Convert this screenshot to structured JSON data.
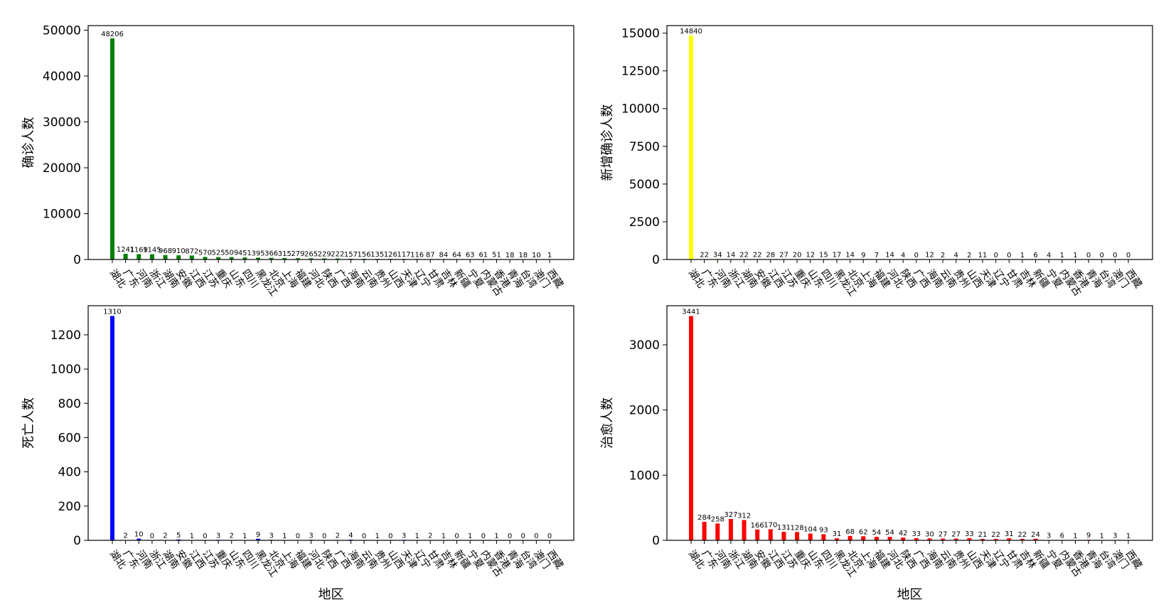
{
  "chart_data": [
    {
      "type": "bar",
      "id": "confirmed",
      "title": "",
      "xlabel": "",
      "ylabel": "确诊人数",
      "color": "#008000",
      "ylim": [
        0,
        51000
      ],
      "yticks": [
        0,
        10000,
        20000,
        30000,
        40000,
        50000
      ],
      "categories": [
        "湖北",
        "广东",
        "河南",
        "浙江",
        "湖南",
        "安徽",
        "江西",
        "江苏",
        "重庆",
        "山东",
        "四川",
        "黑龙江",
        "北京",
        "上海",
        "福建",
        "河北",
        "陕西",
        "广西",
        "海南",
        "云南",
        "贵州",
        "山西",
        "天津",
        "辽宁",
        "甘肃",
        "吉林",
        "新疆",
        "宁夏",
        "内蒙古",
        "香港",
        "青海",
        "台湾",
        "澳门",
        "西藏"
      ],
      "values": [
        48206,
        1241,
        1169,
        1145,
        968,
        910,
        872,
        570,
        525,
        509,
        451,
        395,
        366,
        315,
        279,
        265,
        229,
        222,
        157,
        156,
        135,
        126,
        117,
        116,
        87,
        84,
        64,
        63,
        61,
        51,
        18,
        18,
        10,
        1
      ]
    },
    {
      "type": "bar",
      "id": "new-confirmed",
      "title": "",
      "xlabel": "",
      "ylabel": "新增确诊人数",
      "color": "#ffff00",
      "ylim": [
        0,
        15500
      ],
      "yticks": [
        0,
        2500,
        5000,
        7500,
        10000,
        12500,
        15000
      ],
      "categories": [
        "湖北",
        "广东",
        "河南",
        "浙江",
        "湖南",
        "安徽",
        "江西",
        "江苏",
        "重庆",
        "山东",
        "四川",
        "黑龙江",
        "北京",
        "上海",
        "福建",
        "河北",
        "陕西",
        "广西",
        "海南",
        "云南",
        "贵州",
        "山西",
        "天津",
        "辽宁",
        "甘肃",
        "吉林",
        "新疆",
        "宁夏",
        "内蒙古",
        "香港",
        "青海",
        "台湾",
        "澳门",
        "西藏"
      ],
      "values": [
        14840,
        22,
        34,
        14,
        22,
        22,
        28,
        27,
        20,
        12,
        15,
        17,
        14,
        9,
        7,
        14,
        4,
        0,
        12,
        2,
        4,
        2,
        11,
        0,
        0,
        1,
        6,
        4,
        1,
        1,
        0,
        0,
        0,
        0
      ]
    },
    {
      "type": "bar",
      "id": "deaths",
      "title": "",
      "xlabel": "地区",
      "ylabel": "死亡人数",
      "color": "#0000ff",
      "ylim": [
        0,
        1370
      ],
      "yticks": [
        0,
        200,
        400,
        600,
        800,
        1000,
        1200
      ],
      "categories": [
        "湖北",
        "广东",
        "河南",
        "浙江",
        "湖南",
        "安徽",
        "江西",
        "江苏",
        "重庆",
        "山东",
        "四川",
        "黑龙江",
        "北京",
        "上海",
        "福建",
        "河北",
        "陕西",
        "广西",
        "海南",
        "云南",
        "贵州",
        "山西",
        "天津",
        "辽宁",
        "甘肃",
        "吉林",
        "新疆",
        "宁夏",
        "内蒙古",
        "香港",
        "青海",
        "台湾",
        "澳门",
        "西藏"
      ],
      "values": [
        1310,
        2,
        10,
        0,
        2,
        5,
        1,
        0,
        3,
        2,
        1,
        9,
        3,
        1,
        0,
        3,
        0,
        2,
        4,
        0,
        1,
        0,
        3,
        1,
        2,
        1,
        0,
        1,
        0,
        1,
        0,
        0,
        0,
        0
      ]
    },
    {
      "type": "bar",
      "id": "cured",
      "title": "",
      "xlabel": "地区",
      "ylabel": "治愈人数",
      "color": "#ff0000",
      "ylim": [
        0,
        3600
      ],
      "yticks": [
        0,
        1000,
        2000,
        3000
      ],
      "categories": [
        "湖北",
        "广东",
        "河南",
        "浙江",
        "湖南",
        "安徽",
        "江西",
        "江苏",
        "重庆",
        "山东",
        "四川",
        "黑龙江",
        "北京",
        "上海",
        "福建",
        "河北",
        "陕西",
        "广西",
        "海南",
        "云南",
        "贵州",
        "山西",
        "天津",
        "辽宁",
        "甘肃",
        "吉林",
        "新疆",
        "宁夏",
        "内蒙古",
        "香港",
        "青海",
        "台湾",
        "澳门",
        "西藏"
      ],
      "values": [
        3441,
        284,
        258,
        327,
        312,
        166,
        170,
        131,
        128,
        104,
        93,
        31,
        68,
        62,
        54,
        54,
        42,
        33,
        30,
        27,
        27,
        33,
        21,
        22,
        31,
        22,
        24,
        3,
        6,
        1,
        9,
        1,
        3,
        1
      ]
    }
  ]
}
